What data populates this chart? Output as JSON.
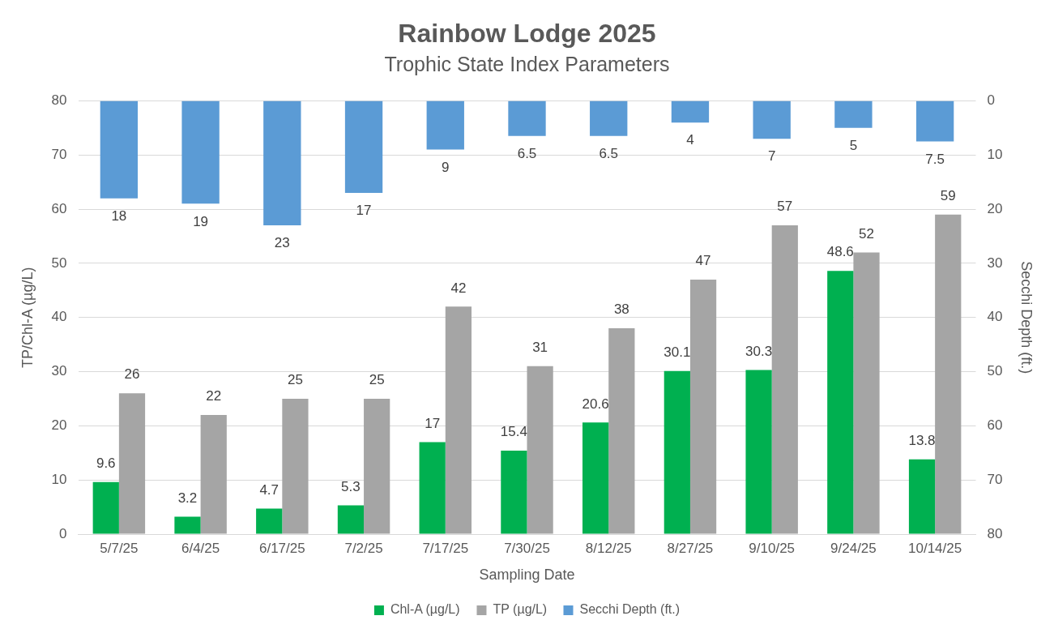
{
  "chart_data": {
    "type": "bar",
    "title": "Rainbow Lodge 2025",
    "subtitle": "Trophic State Index Parameters",
    "xlabel": "Sampling Date",
    "ylabel": "TP/Chl-A (µg/L)",
    "y2label": "Secchi Depth (ft.)",
    "categories": [
      "5/7/25",
      "6/4/25",
      "6/17/25",
      "7/2/25",
      "7/17/25",
      "7/30/25",
      "8/12/25",
      "8/27/25",
      "9/10/25",
      "9/24/25",
      "10/14/25"
    ],
    "series": [
      {
        "name": "Chl-A (µg/L)",
        "color": "#00b050",
        "values": [
          9.6,
          3.2,
          4.7,
          5.3,
          17,
          15.4,
          20.6,
          30.1,
          30.3,
          48.6,
          13.8
        ]
      },
      {
        "name": "TP (µg/L)",
        "color": "#a5a5a5",
        "values": [
          26,
          22,
          25,
          25,
          42,
          31,
          38,
          47,
          57,
          52,
          59
        ]
      },
      {
        "name": "Secchi Depth (ft.)",
        "axis": "y2",
        "color": "#5b9bd5",
        "values": [
          18,
          19,
          23,
          17,
          9,
          6.5,
          6.5,
          4,
          7,
          5,
          7.5
        ]
      }
    ],
    "ylim": [
      0,
      80
    ],
    "yticks": [
      0,
      10,
      20,
      30,
      40,
      50,
      60,
      70,
      80
    ],
    "y2lim": [
      80,
      0
    ],
    "y2ticks": [
      0,
      10,
      20,
      30,
      40,
      50,
      60,
      70,
      80
    ],
    "grid": "y",
    "legend": "bottom",
    "data_labels": true
  }
}
